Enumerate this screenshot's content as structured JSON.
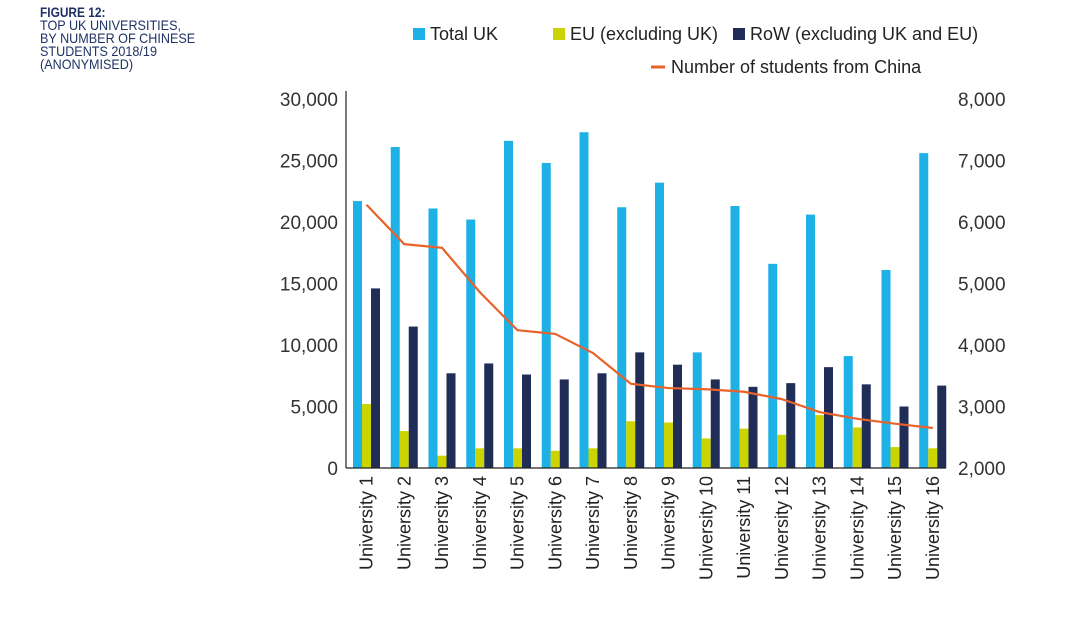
{
  "caption": {
    "figure_label": "FIGURE 12:",
    "title": "TOP UK UNIVERSITIES,\nBY NUMBER OF CHINESE\nSTUDENTS 2018/19\n(ANONYMISED)"
  },
  "chart_data": {
    "type": "bar",
    "title": "Top UK universities, by number of Chinese students 2018/19 (anonymised)",
    "categories": [
      "University 1",
      "University 2",
      "University 3",
      "University 4",
      "University 5",
      "University 6",
      "University 7",
      "University 8",
      "University 9",
      "University 10",
      "University 11",
      "University 12",
      "University 13",
      "University 14",
      "University 15",
      "University 16"
    ],
    "series": [
      {
        "name": "Total UK",
        "type": "bar",
        "axis": "left",
        "color": "#1eb1e6",
        "values": [
          21700,
          26100,
          21100,
          20200,
          26600,
          24800,
          27300,
          21200,
          23200,
          9400,
          21300,
          16600,
          20600,
          9100,
          16100,
          25600
        ]
      },
      {
        "name": "EU (excluding UK)",
        "type": "bar",
        "axis": "left",
        "color": "#cbd400",
        "values": [
          5200,
          3000,
          1000,
          1600,
          1600,
          1400,
          1600,
          3800,
          3700,
          2400,
          3200,
          2700,
          4300,
          3300,
          1700,
          1600
        ]
      },
      {
        "name": "RoW (excluding UK and EU)",
        "type": "bar",
        "axis": "left",
        "color": "#1f2d57",
        "values": [
          14600,
          11500,
          7700,
          8500,
          7600,
          7200,
          7700,
          9400,
          8400,
          7200,
          6600,
          6900,
          8200,
          6800,
          5000,
          6700
        ]
      },
      {
        "name": "Number of students from China",
        "type": "line",
        "axis": "right",
        "color": "#e8622a",
        "values": [
          6280,
          5640,
          5580,
          4860,
          4240,
          4180,
          3870,
          3370,
          3300,
          3280,
          3240,
          3120,
          2910,
          2800,
          2720,
          2650
        ]
      }
    ],
    "xlabel": "",
    "ylabel": "",
    "ylim": [
      0,
      30000
    ],
    "y2lim": [
      2000,
      8000
    ],
    "yticks": [
      "0",
      "5,000",
      "10,000",
      "15,000",
      "20,000",
      "25,000",
      "30,000"
    ],
    "y2ticks": [
      "2,000",
      "3,000",
      "4,000",
      "5,000",
      "6,000",
      "7,000",
      "8,000"
    ],
    "grid": false,
    "legend_position": "top-right"
  }
}
